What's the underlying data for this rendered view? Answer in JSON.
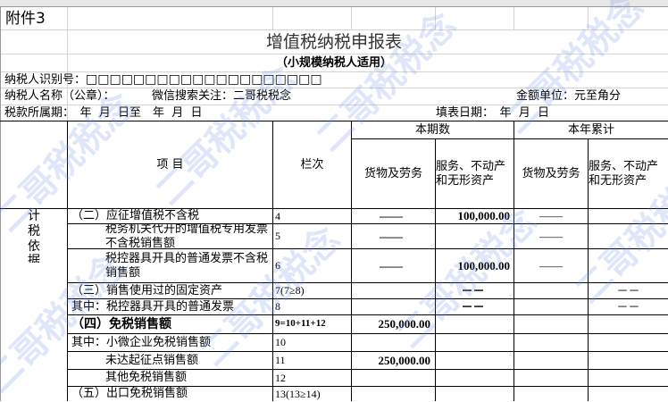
{
  "header": {
    "attachment": "附件3",
    "title": "增值税纳税申报表",
    "subtitle": "（小规模纳税人适用）"
  },
  "info": {
    "taxpayer_id_label": "纳税人识别号：",
    "taxpayer_id_boxes": "□□□□□□□□□□□□□□□□□□□□",
    "taxpayer_name_label": "纳税人名称（公章）：",
    "wechat": "微信搜索关注：二哥税税念",
    "currency_unit": "金额单位：元至角分",
    "period_label": "税款所属期：　年  月  日至　年  月  日",
    "fill_date_label": "填表日期：　年  月  日"
  },
  "table_header": {
    "item": "项  目",
    "line": "栏次",
    "current_period": "本期数",
    "year_total": "本年累计",
    "goods": "货物及劳务",
    "services": "服务、不动产和无形资产",
    "side_label": "计税依据"
  },
  "rows": [
    {
      "item": "（二）应征增值税不含税",
      "line": "4",
      "c1": "——",
      "c2": "100,000.00",
      "c3": "——",
      "c4": ""
    },
    {
      "item": "税务机关代开的增值税专用发票不含税销售额",
      "line": "5",
      "c1": "——",
      "c2": "",
      "c3": "——",
      "c4": ""
    },
    {
      "item": "税控器具开具的普通发票不含税销售额",
      "line": "6",
      "c1": "——",
      "c2": "100,000.00",
      "c3": "——",
      "c4": ""
    },
    {
      "item": "（三）销售使用过的固定资产",
      "line": "7(7≥8)",
      "c1": "",
      "c2": "－－",
      "c3": "",
      "c4": "－－"
    },
    {
      "item": "其中：税控器具开具的普通发票",
      "line": "8",
      "c1": "",
      "c2": "－－",
      "c3": "",
      "c4": "－－"
    },
    {
      "item": "（四）免税销售额",
      "line": "9=10+11+12",
      "c1": "250,000.00",
      "c2": "",
      "c3": "",
      "c4": ""
    },
    {
      "item": "其中：小微企业免税销售额",
      "line": "10",
      "c1": "",
      "c2": "",
      "c3": "",
      "c4": ""
    },
    {
      "item": "未达起征点销售额",
      "line": "11",
      "c1": "250,000.00",
      "c2": "",
      "c3": "",
      "c4": ""
    },
    {
      "item": "其他免税销售额",
      "line": "12",
      "c1": "",
      "c2": "",
      "c3": "",
      "c4": ""
    },
    {
      "item": "（五）出口免税销售额",
      "line": "13(13≥14)",
      "c1": "",
      "c2": "",
      "c3": "",
      "c4": ""
    }
  ],
  "watermark": "二哥税税念"
}
